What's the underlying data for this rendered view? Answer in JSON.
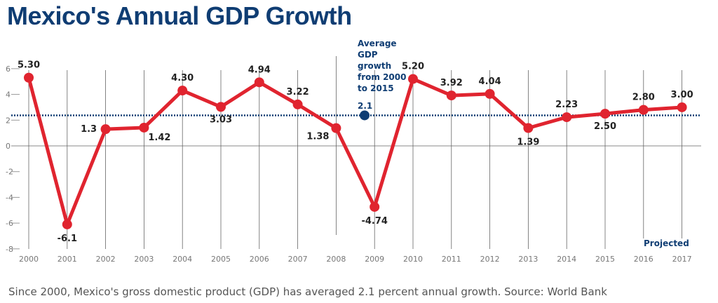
{
  "title": "Mexico's Annual GDP Growth",
  "caption": "Since 2000, Mexico's gross domestic product (GDP) has averaged 2.1 percent annual growth. Source: World Bank",
  "chart_data": {
    "type": "line",
    "title": "Mexico's Annual GDP Growth",
    "xlabel": "",
    "ylabel": "",
    "categories": [
      "2000",
      "2001",
      "2002",
      "2003",
      "2004",
      "2005",
      "2006",
      "2007",
      "2008",
      "2009",
      "2010",
      "2011",
      "2012",
      "2013",
      "2014",
      "2015",
      "2016",
      "2017"
    ],
    "values": [
      5.3,
      -6.1,
      1.3,
      1.42,
      4.3,
      3.03,
      4.94,
      3.22,
      1.38,
      -4.74,
      5.2,
      3.92,
      4.04,
      1.39,
      2.23,
      2.5,
      2.8,
      3.0
    ],
    "value_labels": [
      "5.30",
      "-6.1",
      "1.3",
      "1.42",
      "4.30",
      "3.03",
      "4.94",
      "3.22",
      "1.38",
      "-4.74",
      "5.20",
      "3.92",
      "4.04",
      "1.39",
      "2.23",
      "2.50",
      "2.80",
      "3.00"
    ],
    "ylim": [
      -8,
      6
    ],
    "yticks": [
      "6",
      "4",
      "2",
      "0",
      "-2",
      "-4",
      "-6",
      "-8"
    ],
    "grid": "vertical lines at each year",
    "average": {
      "value": 2.1,
      "label_lines": [
        "Average",
        "GDP",
        "growth",
        "from 2000",
        "to 2015"
      ],
      "value_label": "2.1"
    },
    "projected_label": "Projected",
    "colors": {
      "line": "#e0242f",
      "average": "#0f3d73",
      "title": "#0f3d73"
    }
  }
}
